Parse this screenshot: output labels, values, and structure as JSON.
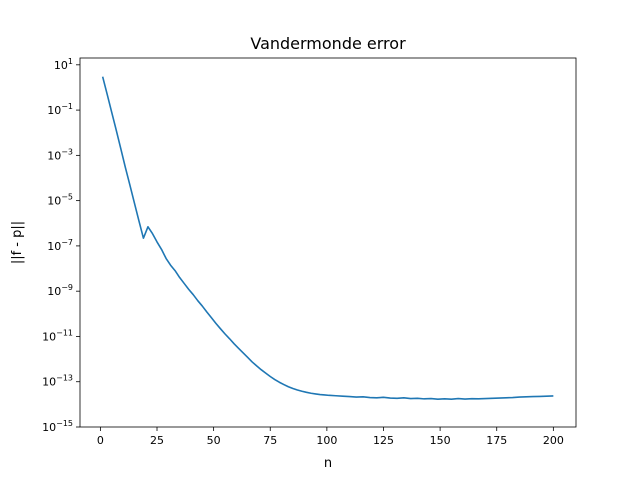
{
  "chart_data": {
    "type": "line",
    "title": "Vandermonde error",
    "xlabel": "n",
    "ylabel": "||f - p||",
    "x_scale": "linear",
    "y_scale": "log",
    "xlim": [
      -9,
      210
    ],
    "ylim": [
      1e-15,
      20
    ],
    "grid": false,
    "line_color": "#1f77b4",
    "x_ticks": [
      {
        "value": 0,
        "label": "0"
      },
      {
        "value": 25,
        "label": "25"
      },
      {
        "value": 50,
        "label": "50"
      },
      {
        "value": 75,
        "label": "75"
      },
      {
        "value": 100,
        "label": "100"
      },
      {
        "value": 125,
        "label": "125"
      },
      {
        "value": 150,
        "label": "150"
      },
      {
        "value": 175,
        "label": "175"
      },
      {
        "value": 200,
        "label": "200"
      }
    ],
    "y_ticks": [
      {
        "exp": 1,
        "base": "10",
        "sup": "1"
      },
      {
        "exp": -1,
        "base": "10",
        "sup": "−1"
      },
      {
        "exp": -3,
        "base": "10",
        "sup": "−3"
      },
      {
        "exp": -5,
        "base": "10",
        "sup": "−5"
      },
      {
        "exp": -7,
        "base": "10",
        "sup": "−7"
      },
      {
        "exp": -9,
        "base": "10",
        "sup": "−9"
      },
      {
        "exp": -11,
        "base": "10",
        "sup": "−11"
      },
      {
        "exp": -13,
        "base": "10",
        "sup": "−13"
      },
      {
        "exp": -15,
        "base": "10",
        "sup": "−15"
      }
    ],
    "series": [
      {
        "x": [
          1,
          3,
          5,
          7,
          9,
          11,
          13,
          15,
          17,
          19,
          21,
          23,
          25,
          27,
          29,
          31,
          33,
          35,
          37,
          39,
          41,
          43,
          45,
          47,
          49,
          51,
          53,
          55,
          57,
          59,
          61,
          63,
          65,
          67,
          69,
          71,
          73,
          75,
          77,
          79,
          81,
          83,
          85,
          87,
          89,
          91,
          93,
          95,
          97,
          99,
          101,
          104,
          107,
          110,
          113,
          116,
          119,
          122,
          125,
          128,
          131,
          134,
          137,
          140,
          143,
          146,
          149,
          152,
          155,
          158,
          161,
          164,
          167,
          170,
          173,
          176,
          179,
          182,
          185,
          188,
          191,
          194,
          197,
          200
        ],
        "y": [
          3,
          0.5,
          0.08,
          0.013,
          0.002,
          0.0003,
          5e-05,
          8e-06,
          1.3e-06,
          2.2e-07,
          7e-07,
          3.5e-07,
          1.5e-07,
          7e-08,
          2.8e-08,
          1.4e-08,
          8e-09,
          4e-09,
          2.2e-09,
          1.2e-09,
          7e-10,
          3.8e-10,
          2.2e-10,
          1.2e-10,
          6.8e-11,
          3.8e-11,
          2.2e-11,
          1.3e-11,
          8e-12,
          4.8e-12,
          3e-12,
          1.9e-12,
          1.2e-12,
          7.5e-13,
          5e-13,
          3.4e-13,
          2.4e-13,
          1.7e-13,
          1.25e-13,
          9.5e-14,
          7.5e-14,
          6e-14,
          5e-14,
          4.3e-14,
          3.8e-14,
          3.4e-14,
          3.1e-14,
          2.9e-14,
          2.7e-14,
          2.6e-14,
          2.5e-14,
          2.4e-14,
          2.3e-14,
          2.2e-14,
          2.1e-14,
          2.15e-14,
          2e-14,
          1.95e-14,
          2.05e-14,
          1.9e-14,
          1.85e-14,
          1.95e-14,
          1.8e-14,
          1.85e-14,
          1.75e-14,
          1.8e-14,
          1.7e-14,
          1.75e-14,
          1.7e-14,
          1.8e-14,
          1.72e-14,
          1.78e-14,
          1.75e-14,
          1.8e-14,
          1.85e-14,
          1.9e-14,
          1.95e-14,
          2e-14,
          2.1e-14,
          2.15e-14,
          2.2e-14,
          2.25e-14,
          2.3e-14,
          2.35e-14
        ]
      }
    ]
  }
}
